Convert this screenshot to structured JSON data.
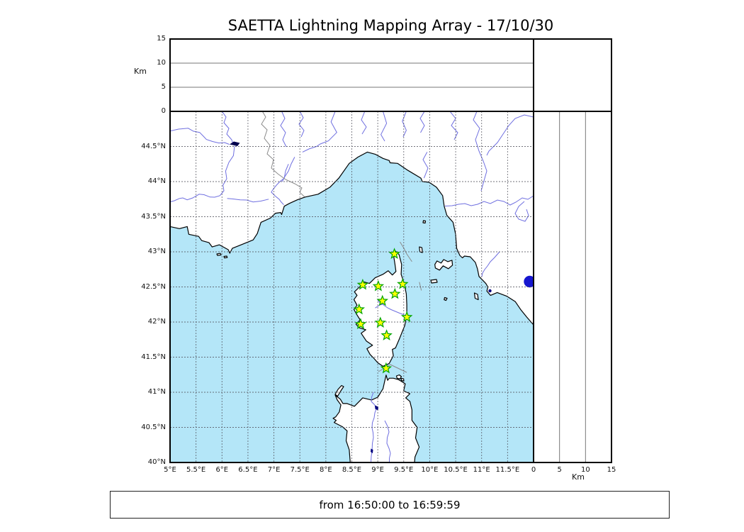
{
  "title": "SAETTA Lightning Mapping Array - 17/10/30",
  "footer": {
    "time_range": "from 16:50:00 to 16:59:59"
  },
  "altitude_panel": {
    "axis_label": "Km",
    "ticks": [
      0,
      5,
      10,
      15
    ],
    "range_km": [
      0,
      15
    ],
    "gridlines_km": [
      5,
      10
    ]
  },
  "right_altitude_panel": {
    "axis_label": "Km",
    "ticks": [
      0,
      5,
      10,
      15
    ],
    "range_km": [
      0,
      15
    ],
    "gridlines_km": [
      5,
      10
    ]
  },
  "map": {
    "lat_range": [
      40,
      45
    ],
    "lon_range": [
      5,
      12
    ],
    "grid_step_deg": 0.5,
    "lat_ticks": [
      {
        "label": "44.5°N",
        "value": 44.5
      },
      {
        "label": "44°N",
        "value": 44.0
      },
      {
        "label": "43.5°N",
        "value": 43.5
      },
      {
        "label": "43°N",
        "value": 43.0
      },
      {
        "label": "42.5°N",
        "value": 42.5
      },
      {
        "label": "42°N",
        "value": 42.0
      },
      {
        "label": "41.5°N",
        "value": 41.5
      },
      {
        "label": "41°N",
        "value": 41.0
      },
      {
        "label": "40.5°N",
        "value": 40.5
      },
      {
        "label": "40°N",
        "value": 40.0
      }
    ],
    "lon_ticks": [
      {
        "label": "5°E",
        "value": 5.0
      },
      {
        "label": "5.5°E",
        "value": 5.5
      },
      {
        "label": "6°E",
        "value": 6.0
      },
      {
        "label": "6.5°E",
        "value": 6.5
      },
      {
        "label": "7°E",
        "value": 7.0
      },
      {
        "label": "7.5°E",
        "value": 7.5
      },
      {
        "label": "8°E",
        "value": 8.0
      },
      {
        "label": "8.5°E",
        "value": 8.5
      },
      {
        "label": "9°E",
        "value": 9.0
      },
      {
        "label": "9.5°E",
        "value": 9.5
      },
      {
        "label": "10°E",
        "value": 10.0
      },
      {
        "label": "10.5°E",
        "value": 10.5
      },
      {
        "label": "11°E",
        "value": 11.0
      },
      {
        "label": "11.5°E",
        "value": 11.5
      }
    ]
  },
  "chart_data": {
    "type": "scatter",
    "title": "SAETTA Lightning Mapping Array - 17/10/30",
    "time_window": "from 16:50:00 to 16:59:59",
    "map_extent": {
      "lon": [
        5,
        12
      ],
      "lat": [
        40,
        45
      ]
    },
    "altitude_axis_km": {
      "min": 0,
      "max": 15,
      "ticks": [
        0,
        5,
        10,
        15
      ],
      "label": "Km"
    },
    "grid": "dashed 0.5 degree",
    "legend": null,
    "lightning_sources": [],
    "stations": [
      {
        "lon": 9.32,
        "lat": 42.97
      },
      {
        "lon": 8.71,
        "lat": 42.53
      },
      {
        "lon": 9.01,
        "lat": 42.51
      },
      {
        "lon": 9.48,
        "lat": 42.54
      },
      {
        "lon": 9.33,
        "lat": 42.4
      },
      {
        "lon": 9.09,
        "lat": 42.3
      },
      {
        "lon": 8.64,
        "lat": 42.18
      },
      {
        "lon": 9.56,
        "lat": 42.07
      },
      {
        "lon": 9.05,
        "lat": 41.99
      },
      {
        "lon": 8.67,
        "lat": 41.97
      },
      {
        "lon": 9.17,
        "lat": 41.81
      },
      {
        "lon": 9.16,
        "lat": 41.34
      }
    ],
    "marker": {
      "shape": "star",
      "fill": "#ffff00",
      "stroke": "#00a400"
    }
  },
  "colors": {
    "sea": "#b4e6f8",
    "land": "#ffffff",
    "coastline": "#000000",
    "grid": "#50505a",
    "river": "#6f6fe0",
    "country_border": "#8a8a8a",
    "lake_small": "#000080",
    "lake_bolsena": "#1616cf",
    "panel_gridline": "#777777",
    "star_fill": "#ffff00",
    "star_stroke": "#00a400"
  }
}
